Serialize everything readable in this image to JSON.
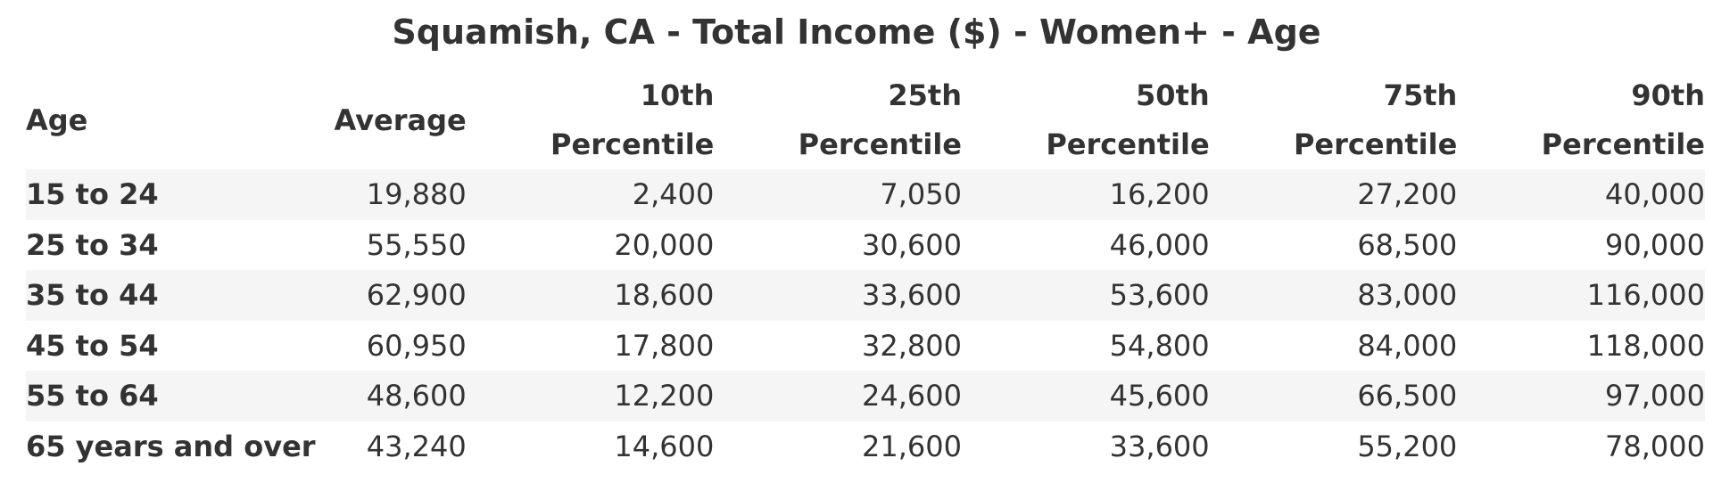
{
  "chart_data": {
    "type": "table",
    "title": "Squamish, CA - Total Income ($) - Women+ - Age",
    "columns": [
      {
        "key": "age",
        "lines": [
          "Age"
        ]
      },
      {
        "key": "average",
        "lines": [
          "Average"
        ]
      },
      {
        "key": "p10",
        "lines": [
          "10th",
          "Percentile"
        ]
      },
      {
        "key": "p25",
        "lines": [
          "25th",
          "Percentile"
        ]
      },
      {
        "key": "p50",
        "lines": [
          "50th",
          "Percentile"
        ]
      },
      {
        "key": "p75",
        "lines": [
          "75th",
          "Percentile"
        ]
      },
      {
        "key": "p90",
        "lines": [
          "90th",
          "Percentile"
        ]
      }
    ],
    "rows": [
      {
        "age": "15 to 24",
        "average": "19,880",
        "p10": "2,400",
        "p25": "7,050",
        "p50": "16,200",
        "p75": "27,200",
        "p90": "40,000"
      },
      {
        "age": "25 to 34",
        "average": "55,550",
        "p10": "20,000",
        "p25": "30,600",
        "p50": "46,000",
        "p75": "68,500",
        "p90": "90,000"
      },
      {
        "age": "35 to 44",
        "average": "62,900",
        "p10": "18,600",
        "p25": "33,600",
        "p50": "53,600",
        "p75": "83,000",
        "p90": "116,000"
      },
      {
        "age": "45 to 54",
        "average": "60,950",
        "p10": "17,800",
        "p25": "32,800",
        "p50": "54,800",
        "p75": "84,000",
        "p90": "118,000"
      },
      {
        "age": "55 to 64",
        "average": "48,600",
        "p10": "12,200",
        "p25": "24,600",
        "p50": "45,600",
        "p75": "66,500",
        "p90": "97,000"
      },
      {
        "age": "65 years and over",
        "average": "43,240",
        "p10": "14,600",
        "p25": "21,600",
        "p50": "33,600",
        "p75": "55,200",
        "p90": "78,000"
      }
    ]
  },
  "colors": {
    "text": "#333333",
    "stripe": "#f5f5f5",
    "background": "#ffffff"
  }
}
